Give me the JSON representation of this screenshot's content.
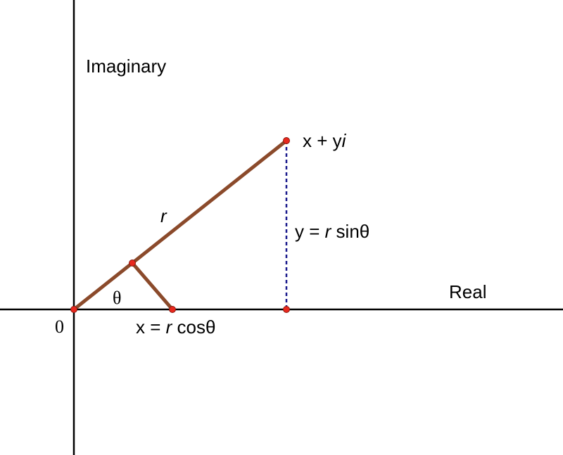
{
  "labels": {
    "imaginary_axis": "Imaginary",
    "real_axis": "Real",
    "origin": "0",
    "theta": "θ",
    "r": "r",
    "point_pre": "x + y",
    "point_i": "i",
    "y_pre": "y = ",
    "y_r": "r",
    "y_post": " sinθ",
    "x_pre": "x = ",
    "x_r": "r",
    "x_post": " cosθ"
  },
  "colors": {
    "axis": "#000000",
    "vector": "#8b4a2b",
    "dashed": "#1a1a8c",
    "point": "#e8281e"
  }
}
